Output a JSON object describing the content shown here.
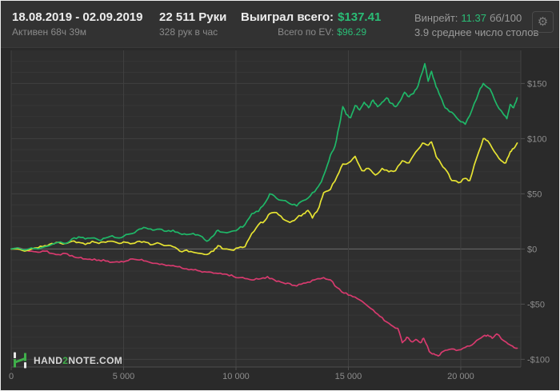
{
  "header": {
    "date_range": "18.08.2019 - 02.09.2019",
    "active_time": "Активен 68ч 39м",
    "hands": "22 511 Руки",
    "hands_per_hour": "328 рук в час",
    "won_label": "Выиграл всего:",
    "won_value": "$137.41",
    "ev_label": "Всего по EV:",
    "ev_value": "$96.29",
    "winrate_label": "Винрейт:",
    "winrate_value": "11.37",
    "winrate_units": "бб/100",
    "avg_tables": "3.9 среднее число столов"
  },
  "icons": {
    "gear": "⚙"
  },
  "logo": {
    "part1": "HAND",
    "part2": "2",
    "part3": "NOTE.COM"
  },
  "colors": {
    "accent_green_text": "#2abd76",
    "chart_bg": "#2a2a2a",
    "plot_bg": "#2f2f2f",
    "grid_minor": "#373737",
    "grid_major": "#404040",
    "zero_line": "#6d6d6d",
    "axis": "#4f4f4f",
    "tick_label": "#8d8d8d"
  },
  "chart_data": {
    "type": "line",
    "x_unit": "hands",
    "xlim": [
      0,
      22670
    ],
    "ylim": [
      -107,
      180
    ],
    "grid": {
      "y_minor_step": 10,
      "y_major_step": 50
    },
    "x_ticks": [
      {
        "v": 0,
        "label": "0"
      },
      {
        "v": 5000,
        "label": "5 000"
      },
      {
        "v": 10000,
        "label": "10 000"
      },
      {
        "v": 15000,
        "label": "15 000"
      },
      {
        "v": 20000,
        "label": "20 000"
      }
    ],
    "y_ticks": [
      {
        "v": 150,
        "label": "$150"
      },
      {
        "v": 100,
        "label": "$100"
      },
      {
        "v": 50,
        "label": "$50"
      },
      {
        "v": 0,
        "label": "$0"
      },
      {
        "v": -50,
        "label": "-$50"
      },
      {
        "v": -100,
        "label": "-$100"
      }
    ],
    "series": [
      {
        "name": "redline",
        "color": "#d73a6e",
        "points": [
          [
            0,
            0
          ],
          [
            300,
            1
          ],
          [
            600,
            -1
          ],
          [
            900,
            -2
          ],
          [
            1200,
            -3
          ],
          [
            1500,
            -2
          ],
          [
            1800,
            -4
          ],
          [
            2100,
            -5
          ],
          [
            2400,
            -4
          ],
          [
            2700,
            -6
          ],
          [
            3000,
            -8
          ],
          [
            3300,
            -9
          ],
          [
            3600,
            -10
          ],
          [
            3900,
            -10
          ],
          [
            4200,
            -11
          ],
          [
            4500,
            -12
          ],
          [
            4800,
            -12
          ],
          [
            5100,
            -11
          ],
          [
            5400,
            -9
          ],
          [
            5700,
            -10
          ],
          [
            6000,
            -11
          ],
          [
            6300,
            -13
          ],
          [
            6600,
            -14
          ],
          [
            6900,
            -15
          ],
          [
            7200,
            -15
          ],
          [
            7500,
            -16
          ],
          [
            7800,
            -18
          ],
          [
            8100,
            -19
          ],
          [
            8400,
            -20
          ],
          [
            8700,
            -21
          ],
          [
            9000,
            -22
          ],
          [
            9300,
            -22
          ],
          [
            9600,
            -23
          ],
          [
            9900,
            -25
          ],
          [
            10200,
            -26
          ],
          [
            10500,
            -27
          ],
          [
            10800,
            -28
          ],
          [
            11100,
            -27
          ],
          [
            11400,
            -25
          ],
          [
            11700,
            -28
          ],
          [
            12000,
            -30
          ],
          [
            12300,
            -31
          ],
          [
            12600,
            -33
          ],
          [
            12900,
            -32
          ],
          [
            13200,
            -30
          ],
          [
            13500,
            -28
          ],
          [
            13900,
            -26
          ],
          [
            14200,
            -28
          ],
          [
            14500,
            -35
          ],
          [
            14800,
            -40
          ],
          [
            15100,
            -42
          ],
          [
            15400,
            -45
          ],
          [
            15700,
            -49
          ],
          [
            16000,
            -54
          ],
          [
            16300,
            -59
          ],
          [
            16600,
            -65
          ],
          [
            16900,
            -69
          ],
          [
            17200,
            -72
          ],
          [
            17400,
            -85
          ],
          [
            17600,
            -80
          ],
          [
            17800,
            -84
          ],
          [
            18000,
            -82
          ],
          [
            18200,
            -85
          ],
          [
            18350,
            -81
          ],
          [
            18600,
            -93
          ],
          [
            18800,
            -95
          ],
          [
            19000,
            -97
          ],
          [
            19200,
            -93
          ],
          [
            19500,
            -91
          ],
          [
            19800,
            -92
          ],
          [
            20100,
            -90
          ],
          [
            20400,
            -88
          ],
          [
            20700,
            -83
          ],
          [
            21000,
            -79
          ],
          [
            21200,
            -78
          ],
          [
            21400,
            -81
          ],
          [
            21600,
            -77
          ],
          [
            21900,
            -83
          ],
          [
            22100,
            -86
          ],
          [
            22300,
            -88
          ],
          [
            22511,
            -90
          ]
        ]
      },
      {
        "name": "ev",
        "color": "#e6e332",
        "points": [
          [
            0,
            0
          ],
          [
            300,
            0
          ],
          [
            600,
            -2
          ],
          [
            900,
            0
          ],
          [
            1200,
            1
          ],
          [
            1500,
            3
          ],
          [
            1800,
            5
          ],
          [
            2100,
            6
          ],
          [
            2400,
            5
          ],
          [
            2700,
            7
          ],
          [
            3000,
            6
          ],
          [
            3300,
            4
          ],
          [
            3600,
            7
          ],
          [
            3900,
            5
          ],
          [
            4200,
            6
          ],
          [
            4500,
            7
          ],
          [
            4800,
            5
          ],
          [
            5100,
            6
          ],
          [
            5400,
            5
          ],
          [
            5700,
            7
          ],
          [
            6000,
            6
          ],
          [
            6300,
            4
          ],
          [
            6600,
            5
          ],
          [
            6900,
            3
          ],
          [
            7200,
            2
          ],
          [
            7500,
            -2
          ],
          [
            7800,
            -1
          ],
          [
            8100,
            -3
          ],
          [
            8400,
            -4
          ],
          [
            8700,
            -5
          ],
          [
            9000,
            -2
          ],
          [
            9200,
            3
          ],
          [
            9500,
            0
          ],
          [
            9800,
            -1
          ],
          [
            10100,
            1
          ],
          [
            10400,
            2
          ],
          [
            10700,
            14
          ],
          [
            11000,
            22
          ],
          [
            11300,
            26
          ],
          [
            11500,
            32
          ],
          [
            11800,
            33
          ],
          [
            12100,
            27
          ],
          [
            12400,
            24
          ],
          [
            12700,
            28
          ],
          [
            13000,
            32
          ],
          [
            13200,
            35
          ],
          [
            13400,
            28
          ],
          [
            13700,
            38
          ],
          [
            13900,
            51
          ],
          [
            14200,
            54
          ],
          [
            14500,
            66
          ],
          [
            14750,
            77
          ],
          [
            15000,
            78
          ],
          [
            15300,
            84
          ],
          [
            15600,
            71
          ],
          [
            15900,
            73
          ],
          [
            16200,
            67
          ],
          [
            16500,
            73
          ],
          [
            16800,
            70
          ],
          [
            17100,
            71
          ],
          [
            17400,
            80
          ],
          [
            17700,
            78
          ],
          [
            18000,
            88
          ],
          [
            18300,
            96
          ],
          [
            18550,
            94
          ],
          [
            18700,
            97
          ],
          [
            18900,
            84
          ],
          [
            19100,
            78
          ],
          [
            19400,
            70
          ],
          [
            19600,
            62
          ],
          [
            19900,
            60
          ],
          [
            20200,
            64
          ],
          [
            20400,
            62
          ],
          [
            20700,
            82
          ],
          [
            21000,
            100
          ],
          [
            21200,
            98
          ],
          [
            21500,
            88
          ],
          [
            21800,
            80
          ],
          [
            22000,
            78
          ],
          [
            22200,
            88
          ],
          [
            22350,
            91
          ],
          [
            22511,
            96
          ]
        ]
      },
      {
        "name": "winnings",
        "color": "#1fb768",
        "points": [
          [
            0,
            0
          ],
          [
            300,
            1
          ],
          [
            600,
            -1
          ],
          [
            900,
            1
          ],
          [
            1200,
            0
          ],
          [
            1500,
            2
          ],
          [
            1800,
            4
          ],
          [
            2100,
            6
          ],
          [
            2400,
            5
          ],
          [
            2700,
            9
          ],
          [
            3000,
            11
          ],
          [
            3300,
            9
          ],
          [
            3600,
            10
          ],
          [
            3900,
            8
          ],
          [
            4200,
            10
          ],
          [
            4500,
            12
          ],
          [
            4800,
            10
          ],
          [
            5100,
            13
          ],
          [
            5400,
            14
          ],
          [
            5700,
            18
          ],
          [
            6000,
            19
          ],
          [
            6300,
            17
          ],
          [
            6600,
            18
          ],
          [
            6900,
            16
          ],
          [
            7200,
            17
          ],
          [
            7500,
            14
          ],
          [
            7800,
            13
          ],
          [
            8100,
            14
          ],
          [
            8400,
            12
          ],
          [
            8700,
            7
          ],
          [
            9000,
            12
          ],
          [
            9200,
            17
          ],
          [
            9500,
            15
          ],
          [
            9800,
            16
          ],
          [
            10100,
            18
          ],
          [
            10400,
            22
          ],
          [
            10700,
            32
          ],
          [
            11000,
            34
          ],
          [
            11300,
            42
          ],
          [
            11500,
            50
          ],
          [
            11800,
            46
          ],
          [
            12100,
            44
          ],
          [
            12400,
            41
          ],
          [
            12700,
            39
          ],
          [
            13000,
            44
          ],
          [
            13300,
            48
          ],
          [
            13600,
            55
          ],
          [
            13800,
            61
          ],
          [
            14000,
            72
          ],
          [
            14200,
            85
          ],
          [
            14400,
            93
          ],
          [
            14600,
            112
          ],
          [
            14750,
            129
          ],
          [
            14900,
            122
          ],
          [
            15100,
            119
          ],
          [
            15300,
            130
          ],
          [
            15500,
            126
          ],
          [
            15700,
            133
          ],
          [
            15900,
            128
          ],
          [
            16100,
            135
          ],
          [
            16300,
            129
          ],
          [
            16500,
            133
          ],
          [
            16700,
            137
          ],
          [
            16900,
            132
          ],
          [
            17100,
            129
          ],
          [
            17300,
            134
          ],
          [
            17500,
            142
          ],
          [
            17700,
            138
          ],
          [
            17900,
            141
          ],
          [
            18100,
            148
          ],
          [
            18400,
            168
          ],
          [
            18550,
            152
          ],
          [
            18700,
            161
          ],
          [
            18900,
            147
          ],
          [
            19100,
            138
          ],
          [
            19300,
            128
          ],
          [
            19600,
            124
          ],
          [
            19900,
            117
          ],
          [
            20200,
            113
          ],
          [
            20500,
            126
          ],
          [
            20800,
            142
          ],
          [
            21000,
            150
          ],
          [
            21300,
            145
          ],
          [
            21600,
            131
          ],
          [
            21900,
            122
          ],
          [
            22050,
            118
          ],
          [
            22200,
            131
          ],
          [
            22350,
            128
          ],
          [
            22511,
            137
          ]
        ]
      }
    ]
  }
}
